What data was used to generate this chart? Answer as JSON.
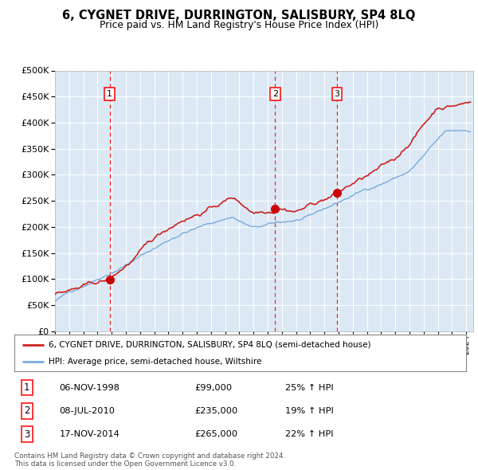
{
  "title": "6, CYGNET DRIVE, DURRINGTON, SALISBURY, SP4 8LQ",
  "subtitle": "Price paid vs. HM Land Registry's House Price Index (HPI)",
  "background_color": "#dce9f5",
  "plot_bg_color": "#dce9f5",
  "red_line_label": "6, CYGNET DRIVE, DURRINGTON, SALISBURY, SP4 8LQ (semi-detached house)",
  "blue_line_label": "HPI: Average price, semi-detached house, Wiltshire",
  "footer": "Contains HM Land Registry data © Crown copyright and database right 2024.\nThis data is licensed under the Open Government Licence v3.0.",
  "sales": [
    {
      "num": 1,
      "date": "06-NOV-1998",
      "price": 99000,
      "pct": "25% ↑ HPI",
      "year": 1998.85
    },
    {
      "num": 2,
      "date": "08-JUL-2010",
      "price": 235000,
      "pct": "19% ↑ HPI",
      "year": 2010.52
    },
    {
      "num": 3,
      "date": "17-NOV-2014",
      "price": 265000,
      "pct": "22% ↑ HPI",
      "year": 2014.88
    }
  ],
  "ylim": [
    0,
    500000
  ],
  "yticks": [
    0,
    50000,
    100000,
    150000,
    200000,
    250000,
    300000,
    350000,
    400000,
    450000,
    500000
  ],
  "xlim_start": 1995.0,
  "xlim_end": 2024.5,
  "hpi_color": "#7aaadd",
  "price_color": "#cc2222",
  "marker_color": "#cc0000"
}
